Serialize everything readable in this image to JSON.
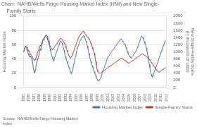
{
  "chart_data": {
    "type": "line",
    "title": "Chart:  NAHB/Wells Fargo Housing Market Index (HMI) and New Single-",
    "subtitle": "    Family Starts",
    "ylabel": "Housing Market Index",
    "y2label": "New Single-Family Starts (in thousands of units)",
    "annotations": [
      "Source: NAHB/Wells Fargo Housing Market\nIndex"
    ],
    "legend": "lower right",
    "grid": true,
    "xlim": [
      1985,
      2012
    ],
    "xticks": [
      1985,
      1986,
      1987,
      1988,
      1989,
      1990,
      1991,
      1992,
      1993,
      1994,
      1995,
      1996,
      1997,
      1998,
      1999,
      2000,
      2001,
      2002,
      2003,
      2004,
      2005,
      2006,
      2007,
      2008,
      2009,
      2010,
      2011,
      2012
    ],
    "ylim": [
      0,
      100
    ],
    "yticks": [
      0,
      20,
      40,
      60,
      80,
      100
    ],
    "y2lim": [
      0,
      2000
    ],
    "y2ticks": [
      0,
      200,
      400,
      600,
      800,
      1000,
      1200,
      1400,
      1600,
      1800,
      2000
    ],
    "x": [
      1985,
      1985.09375,
      1985.1875,
      1985.28125,
      1985.375,
      1985.46875,
      1985.5625,
      1985.65625,
      1985.75,
      1985.84375,
      1985.9375,
      1986.03125,
      1986.125,
      1986.21875,
      1986.3125,
      1986.40625,
      1986.5,
      1986.59375,
      1986.6875,
      1986.78125,
      1986.875,
      1986.96875,
      1987.0625,
      1987.15625,
      1987.25,
      1987.34375,
      1987.4375,
      1987.53125,
      1987.625,
      1987.71875,
      1987.8125,
      1987.90625,
      1988,
      1988.09375,
      1988.1875,
      1988.28125,
      1988.375,
      1988.46875,
      1988.5625,
      1988.65625,
      1988.75,
      1988.84375,
      1988.9375,
      1989.03125,
      1989.125,
      1989.21875,
      1989.3125,
      1989.40625,
      1989.5,
      1989.59375,
      1989.6875,
      1989.78125,
      1989.875,
      1989.96875,
      1990.0625,
      1990.15625,
      1990.25,
      1990.34375,
      1990.4375,
      1990.53125,
      1990.625,
      1990.71875,
      1990.8125,
      1990.90625,
      1991,
      1991.09375,
      1991.1875,
      1991.28125,
      1991.375,
      1991.46875,
      1991.5625,
      1991.65625,
      1991.75,
      1991.84375,
      1991.9375,
      1992.03125,
      1992.125,
      1992.21875,
      1992.3125,
      1992.40625,
      1992.5,
      1992.59375,
      1992.6875,
      1992.78125,
      1992.875,
      1992.96875,
      1993.0625,
      1993.15625,
      1993.25,
      1993.34375,
      1993.4375,
      1993.53125,
      1993.625,
      1993.71875,
      1993.8125,
      1993.90625,
      1994,
      1994.09375,
      1994.1875,
      1994.28125,
      1994.375,
      1994.46875,
      1994.5625,
      1994.65625,
      1994.75,
      1994.84375,
      1994.9375,
      1995.03125,
      1995.125,
      1995.21875,
      1995.3125,
      1995.40625,
      1995.5,
      1995.59375,
      1995.6875,
      1995.78125,
      1995.875,
      1995.96875,
      1996.0625,
      1996.15625,
      1996.25,
      1996.34375,
      1996.4375,
      1996.53125,
      1996.625,
      1996.71875,
      1996.8125,
      1996.90625,
      1997,
      1997.09375,
      1997.1875,
      1997.28125,
      1997.375,
      1997.46875,
      1997.5625,
      1997.65625,
      1997.75,
      1997.84375,
      1997.9375,
      1998.03125,
      1998.125,
      1998.21875,
      1998.3125,
      1998.40625,
      1998.5,
      1998.59375,
      1998.6875,
      1998.78125,
      1998.875,
      1998.96875,
      1999.0625,
      1999.15625,
      1999.25,
      1999.34375,
      1999.4375,
      1999.53125,
      1999.625,
      1999.71875,
      1999.8125,
      1999.90625,
      2000,
      2000.09375,
      2000.1875,
      2000.28125,
      2000.375,
      2000.46875,
      2000.5625,
      2000.65625,
      2000.75,
      2000.84375,
      2000.9375,
      2001.03125,
      2001.125,
      2001.21875,
      2001.3125,
      2001.40625,
      2001.5,
      2001.59375,
      2001.6875,
      2001.78125,
      2001.875,
      2001.96875,
      2002.0625,
      2002.15625,
      2002.25,
      2002.34375,
      2002.4375,
      2002.53125,
      2002.625,
      2002.71875,
      2002.8125,
      2002.90625,
      2003,
      2003.09375,
      2003.1875,
      2003.28125,
      2003.375,
      2003.46875,
      2003.5625,
      2003.65625,
      2003.75,
      2003.84375,
      2003.9375,
      2004.03125,
      2004.125,
      2004.21875,
      2004.3125,
      2004.40625,
      2004.5,
      2004.59375,
      2004.6875,
      2004.78125,
      2004.875,
      2004.96875,
      2005.0625,
      2005.15625,
      2005.25,
      2005.34375,
      2005.4375,
      2005.53125,
      2005.625,
      2005.71875,
      2005.8125,
      2005.90625,
      2006,
      2006.09375,
      2006.1875,
      2006.28125,
      2006.375,
      2006.46875,
      2006.5625,
      2006.65625,
      2006.75,
      2006.84375,
      2006.9375,
      2007.03125,
      2007.125,
      2007.21875,
      2007.3125,
      2007.40625,
      2007.5,
      2007.59375,
      2007.6875,
      2007.78125,
      2007.875,
      2007.96875,
      2008.0625,
      2008.15625,
      2008.25,
      2008.34375,
      2008.4375,
      2008.53125,
      2008.625,
      2008.71875,
      2008.8125,
      2008.90625,
      2009,
      2009.09375,
      2009.1875,
      2009.28125,
      2009.375,
      2009.46875,
      2009.5625,
      2009.65625,
      2009.75,
      2009.84375,
      2009.9375,
      2010.03125,
      2010.125,
      2010.21875,
      2010.3125,
      2010.40625,
      2010.5,
      2010.59375,
      2010.6875,
      2010.78125,
      2010.875,
      2010.96875,
      2011.0625,
      2011.15625,
      2011.25,
      2011.34375,
      2011.4375,
      2011.53125,
      2011.625,
      2011.71875,
      2011.8125,
      2011.90625
    ],
    "series": [
      {
        "name": "Housing Market Index",
        "color": "#4472a8",
        "values": [
          50,
          52,
          54,
          56,
          58,
          57,
          55,
          53,
          51,
          49,
          47,
          45,
          43,
          42,
          44,
          43,
          41,
          39,
          37,
          33,
          28,
          24,
          21,
          20,
          24,
          28,
          32,
          36,
          40,
          38,
          42,
          45,
          48,
          51,
          54,
          52,
          56,
          59,
          62,
          65,
          67,
          66,
          68,
          70,
          72,
          73,
          74,
          73,
          72,
          70,
          68,
          65,
          62,
          58,
          54,
          51,
          48,
          45,
          43,
          41,
          39,
          37,
          40,
          42,
          44,
          46,
          48,
          50,
          52,
          54,
          56,
          58,
          60,
          62,
          64,
          65,
          65,
          64,
          62,
          60,
          58,
          55,
          52,
          49,
          46,
          43,
          41,
          38,
          36,
          34,
          32,
          30,
          28,
          26,
          24,
          22,
          20,
          19,
          21,
          24,
          27,
          30,
          34,
          37,
          40,
          43,
          46,
          49,
          52,
          55,
          57,
          59,
          61,
          63,
          65,
          66,
          67,
          68,
          70,
          71,
          72,
          73,
          72,
          71,
          69,
          67,
          65,
          63,
          61,
          58,
          55,
          52,
          48,
          45,
          42,
          39,
          36,
          34,
          32,
          30,
          28,
          26,
          24,
          22,
          20,
          18,
          16,
          14,
          12,
          11,
          10,
          9,
          9,
          10,
          11,
          12,
          14,
          16,
          18,
          20,
          22,
          24,
          26,
          28,
          30,
          32,
          34,
          36,
          38,
          40,
          42,
          43,
          44,
          45,
          46,
          47,
          48,
          49,
          50,
          51,
          52,
          53,
          54,
          55,
          56,
          57,
          58,
          59,
          60,
          61,
          62,
          63,
          64,
          65,
          66,
          67,
          68,
          68,
          67,
          66,
          65,
          64,
          63,
          62,
          61,
          60,
          58,
          56,
          54,
          52,
          50,
          48,
          46,
          45,
          44,
          43,
          42,
          41,
          42,
          43,
          44,
          45,
          46,
          47,
          48,
          49,
          50,
          51,
          52,
          54,
          56,
          58,
          60,
          62,
          64,
          66,
          68,
          70,
          72,
          72,
          71,
          70,
          68,
          66,
          64,
          62,
          60,
          58,
          55,
          52,
          48,
          44,
          40,
          36,
          32,
          28,
          24,
          20,
          18,
          16,
          14,
          16,
          18,
          20,
          22,
          24,
          26,
          28,
          30,
          32,
          34,
          36,
          38,
          40,
          42,
          44,
          46,
          48,
          50,
          52,
          54,
          56,
          58,
          60,
          62,
          64,
          65,
          65
        ]
      },
      {
        "name": "Single-Family Starts",
        "color": "#c0392b",
        "axis": "y2",
        "values": [
          1000,
          1020,
          1060,
          1100,
          1140,
          1160,
          1150,
          1130,
          1100,
          1070,
          1040,
          1010,
          980,
          960,
          940,
          920,
          900,
          880,
          860,
          830,
          800,
          780,
          760,
          750,
          780,
          810,
          850,
          900,
          950,
          1000,
          1020,
          1060,
          1100,
          1140,
          1180,
          1160,
          1200,
          1240,
          1280,
          1320,
          1360,
          1380,
          1400,
          1420,
          1430,
          1440,
          1420,
          1400,
          1380,
          1340,
          1300,
          1260,
          1220,
          1180,
          1160,
          1140,
          1120,
          1100,
          1080,
          1060,
          1080,
          1100,
          1120,
          1140,
          1160,
          1180,
          1200,
          1220,
          1240,
          1260,
          1280,
          1300,
          1320,
          1340,
          1360,
          1380,
          1380,
          1360,
          1340,
          1320,
          1300,
          1280,
          1260,
          1240,
          1200,
          1160,
          1120,
          1080,
          1040,
          1000,
          960,
          920,
          880,
          860,
          840,
          820,
          840,
          860,
          880,
          920,
          960,
          1000,
          1040,
          1080,
          1120,
          1160,
          1200,
          1240,
          1280,
          1320,
          1360,
          1400,
          1420,
          1440,
          1460,
          1480,
          1500,
          1520,
          1540,
          1560,
          1560,
          1580,
          1560,
          1540,
          1520,
          1500,
          1480,
          1460,
          1440,
          1420,
          1400,
          1380,
          1360,
          1340,
          1320,
          1280,
          1240,
          1200,
          1160,
          1120,
          1080,
          1040,
          1000,
          960,
          900,
          820,
          720,
          620,
          540,
          480,
          440,
          420,
          400,
          390,
          390,
          400,
          410,
          420,
          430,
          440,
          450,
          460,
          470,
          480,
          490,
          500,
          510,
          520,
          530,
          540,
          550,
          560,
          570,
          580,
          590,
          600,
          610,
          620,
          630,
          640,
          650,
          660,
          670,
          680,
          690,
          700,
          710,
          720,
          730,
          740,
          750,
          760,
          770,
          780,
          790,
          800,
          810,
          820,
          820,
          810,
          800,
          790,
          780,
          770,
          760,
          750,
          740,
          730,
          720,
          710,
          700,
          690,
          680,
          680,
          690,
          700,
          710,
          720,
          730,
          740,
          750,
          760,
          770,
          780,
          790,
          800,
          810,
          820,
          830,
          840,
          850,
          860,
          870,
          880,
          890,
          900,
          910,
          920,
          930,
          940,
          940,
          930,
          920,
          910,
          900,
          890,
          880,
          870,
          860,
          850,
          840,
          830,
          820,
          800,
          780,
          760,
          740,
          720,
          700,
          680,
          660,
          640,
          620,
          600,
          580,
          560,
          540,
          520,
          500,
          480,
          460,
          450,
          440,
          430,
          430,
          440,
          450,
          460,
          470,
          480,
          490,
          500,
          510,
          520,
          530,
          540,
          550,
          560
        ]
      }
    ]
  }
}
